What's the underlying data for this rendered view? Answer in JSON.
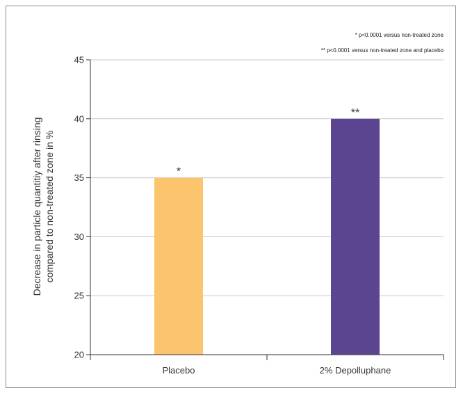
{
  "chart_data": {
    "type": "bar",
    "categories": [
      "Placebo",
      "2% Depolluphane"
    ],
    "values": [
      35,
      40
    ],
    "colors": [
      "#FDC46E",
      "#5C4590"
    ],
    "significance": [
      "*",
      "**"
    ],
    "ylabel": [
      "Decrease in particle quantitiy after rinsing",
      "compared to non-treated zone in %"
    ],
    "ylim": [
      20,
      45
    ],
    "yticks": [
      20,
      25,
      30,
      35,
      40,
      45
    ],
    "grid": true,
    "notes": [
      "* p<0.0001 versus non-treated zone",
      "** p<0.0001 versus non-treated zone and placebo"
    ]
  }
}
